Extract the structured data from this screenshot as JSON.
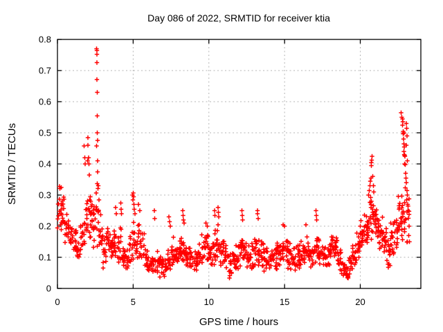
{
  "page": {
    "background_color": "#ffffff",
    "axis_color": "#000000"
  },
  "chart_data": {
    "type": "scatter",
    "title": "Day 086 of 2022, SRMTID for receiver ktia",
    "xlabel": "GPS time / hours",
    "ylabel": "SRMTID / TECUs",
    "xlim": [
      0,
      24
    ],
    "ylim": [
      0,
      0.8
    ],
    "xticks": [
      0,
      5,
      10,
      15,
      20
    ],
    "xtick_labels": [
      "0",
      "5",
      "10",
      "15",
      "20"
    ],
    "yticks": [
      0,
      0.1,
      0.2,
      0.3,
      0.4,
      0.5,
      0.6,
      0.7,
      0.8
    ],
    "ytick_labels": [
      "0",
      "0.1",
      "0.2",
      "0.3",
      "0.4",
      "0.5",
      "0.6",
      "0.7",
      "0.8"
    ],
    "grid": true,
    "grid_style": "dotted",
    "grid_color": "#b5b5b5",
    "marker": "plus",
    "marker_color": "#ff0000",
    "legend": null,
    "note": "Dense 30s-rate scatter; density_bins give [bin_start_hour, n_points, y_min, y_max] of the main band per 0.25 h bin; outlier_points are the distinct high excursions readable from the plot.",
    "bin_width_hours": 0.25,
    "density_bins": [
      [
        0.0,
        16,
        0.17,
        0.34
      ],
      [
        0.25,
        14,
        0.15,
        0.31
      ],
      [
        0.5,
        13,
        0.12,
        0.26
      ],
      [
        0.75,
        13,
        0.12,
        0.22
      ],
      [
        1.0,
        13,
        0.1,
        0.2
      ],
      [
        1.25,
        12,
        0.09,
        0.16
      ],
      [
        1.5,
        12,
        0.11,
        0.22
      ],
      [
        1.75,
        13,
        0.13,
        0.3
      ],
      [
        2.0,
        14,
        0.13,
        0.35
      ],
      [
        2.25,
        15,
        0.1,
        0.3
      ],
      [
        2.5,
        16,
        0.12,
        0.4
      ],
      [
        2.75,
        13,
        0.1,
        0.25
      ],
      [
        3.0,
        13,
        0.06,
        0.18
      ],
      [
        3.25,
        13,
        0.08,
        0.2
      ],
      [
        3.5,
        12,
        0.08,
        0.18
      ],
      [
        3.75,
        13,
        0.08,
        0.22
      ],
      [
        4.0,
        13,
        0.07,
        0.2
      ],
      [
        4.25,
        12,
        0.06,
        0.16
      ],
      [
        4.5,
        12,
        0.06,
        0.14
      ],
      [
        4.75,
        13,
        0.07,
        0.2
      ],
      [
        5.0,
        13,
        0.08,
        0.22
      ],
      [
        5.25,
        13,
        0.09,
        0.24
      ],
      [
        5.5,
        12,
        0.08,
        0.2
      ],
      [
        5.75,
        12,
        0.05,
        0.15
      ],
      [
        6.0,
        11,
        0.03,
        0.12
      ],
      [
        6.25,
        11,
        0.03,
        0.14
      ],
      [
        6.5,
        12,
        0.04,
        0.13
      ],
      [
        6.75,
        12,
        0.03,
        0.12
      ],
      [
        7.0,
        12,
        0.02,
        0.12
      ],
      [
        7.25,
        12,
        0.03,
        0.14
      ],
      [
        7.5,
        13,
        0.05,
        0.17
      ],
      [
        7.75,
        13,
        0.05,
        0.16
      ],
      [
        8.0,
        13,
        0.06,
        0.18
      ],
      [
        8.25,
        13,
        0.06,
        0.2
      ],
      [
        8.5,
        12,
        0.05,
        0.15
      ],
      [
        8.75,
        12,
        0.05,
        0.14
      ],
      [
        9.0,
        13,
        0.05,
        0.14
      ],
      [
        9.25,
        13,
        0.06,
        0.16
      ],
      [
        9.5,
        13,
        0.07,
        0.18
      ],
      [
        9.75,
        14,
        0.07,
        0.19
      ],
      [
        10.0,
        13,
        0.06,
        0.16
      ],
      [
        10.25,
        13,
        0.07,
        0.2
      ],
      [
        10.5,
        13,
        0.07,
        0.22
      ],
      [
        10.75,
        13,
        0.06,
        0.18
      ],
      [
        11.0,
        12,
        0.05,
        0.15
      ],
      [
        11.25,
        12,
        0.03,
        0.12
      ],
      [
        11.5,
        12,
        0.04,
        0.14
      ],
      [
        11.75,
        13,
        0.05,
        0.16
      ],
      [
        12.0,
        13,
        0.06,
        0.18
      ],
      [
        12.25,
        13,
        0.06,
        0.17
      ],
      [
        12.5,
        12,
        0.05,
        0.15
      ],
      [
        12.75,
        13,
        0.05,
        0.15
      ],
      [
        13.0,
        13,
        0.06,
        0.18
      ],
      [
        13.25,
        13,
        0.06,
        0.18
      ],
      [
        13.5,
        12,
        0.05,
        0.15
      ],
      [
        13.75,
        12,
        0.04,
        0.14
      ],
      [
        14.0,
        12,
        0.05,
        0.14
      ],
      [
        14.25,
        13,
        0.05,
        0.15
      ],
      [
        14.5,
        13,
        0.06,
        0.17
      ],
      [
        14.75,
        13,
        0.07,
        0.18
      ],
      [
        15.0,
        13,
        0.06,
        0.17
      ],
      [
        15.25,
        12,
        0.05,
        0.15
      ],
      [
        15.5,
        12,
        0.05,
        0.14
      ],
      [
        15.75,
        13,
        0.05,
        0.15
      ],
      [
        16.0,
        13,
        0.06,
        0.16
      ],
      [
        16.25,
        13,
        0.07,
        0.18
      ],
      [
        16.5,
        12,
        0.06,
        0.16
      ],
      [
        16.75,
        13,
        0.06,
        0.17
      ],
      [
        17.0,
        13,
        0.07,
        0.2
      ],
      [
        17.25,
        13,
        0.06,
        0.17
      ],
      [
        17.5,
        13,
        0.05,
        0.16
      ],
      [
        17.75,
        13,
        0.06,
        0.16
      ],
      [
        18.0,
        14,
        0.08,
        0.17
      ],
      [
        18.25,
        15,
        0.09,
        0.17
      ],
      [
        18.5,
        13,
        0.05,
        0.13
      ],
      [
        18.75,
        12,
        0.03,
        0.09
      ],
      [
        19.0,
        12,
        0.02,
        0.08
      ],
      [
        19.25,
        12,
        0.04,
        0.12
      ],
      [
        19.5,
        13,
        0.06,
        0.15
      ],
      [
        19.75,
        14,
        0.09,
        0.18
      ],
      [
        20.0,
        15,
        0.11,
        0.22
      ],
      [
        20.25,
        15,
        0.13,
        0.26
      ],
      [
        20.5,
        16,
        0.15,
        0.3
      ],
      [
        20.75,
        15,
        0.15,
        0.28
      ],
      [
        21.0,
        14,
        0.14,
        0.26
      ],
      [
        21.25,
        14,
        0.12,
        0.24
      ],
      [
        21.5,
        13,
        0.1,
        0.22
      ],
      [
        21.75,
        13,
        0.05,
        0.18
      ],
      [
        22.0,
        13,
        0.08,
        0.22
      ],
      [
        22.25,
        14,
        0.12,
        0.26
      ],
      [
        22.5,
        15,
        0.15,
        0.33
      ],
      [
        22.75,
        15,
        0.1,
        0.35
      ],
      [
        23.0,
        12,
        0.08,
        0.3
      ]
    ],
    "outlier_points": [
      [
        1.77,
        0.458
      ],
      [
        1.8,
        0.42
      ],
      [
        1.83,
        0.4
      ],
      [
        1.98,
        0.41
      ],
      [
        2.0,
        0.485
      ],
      [
        2.02,
        0.46
      ],
      [
        2.05,
        0.42
      ],
      [
        2.07,
        0.4
      ],
      [
        2.1,
        0.365
      ],
      [
        2.58,
        0.77
      ],
      [
        2.6,
        0.765
      ],
      [
        2.6,
        0.752
      ],
      [
        2.61,
        0.726
      ],
      [
        2.6,
        0.671
      ],
      [
        2.62,
        0.63
      ],
      [
        2.63,
        0.555
      ],
      [
        2.62,
        0.5
      ],
      [
        2.64,
        0.476
      ],
      [
        2.59,
        0.458
      ],
      [
        2.64,
        0.41
      ],
      [
        2.65,
        0.375
      ],
      [
        3.85,
        0.26
      ],
      [
        3.88,
        0.24
      ],
      [
        4.18,
        0.275
      ],
      [
        4.2,
        0.255
      ],
      [
        4.23,
        0.24
      ],
      [
        4.95,
        0.3
      ],
      [
        5.0,
        0.307
      ],
      [
        5.02,
        0.295
      ],
      [
        4.98,
        0.285
      ],
      [
        5.05,
        0.27
      ],
      [
        5.08,
        0.255
      ],
      [
        5.12,
        0.24
      ],
      [
        5.35,
        0.27
      ],
      [
        5.45,
        0.25
      ],
      [
        6.4,
        0.25
      ],
      [
        6.42,
        0.225
      ],
      [
        7.35,
        0.23
      ],
      [
        7.4,
        0.215
      ],
      [
        7.45,
        0.2
      ],
      [
        8.28,
        0.25
      ],
      [
        8.3,
        0.235
      ],
      [
        8.33,
        0.22
      ],
      [
        8.36,
        0.21
      ],
      [
        9.8,
        0.21
      ],
      [
        9.9,
        0.2
      ],
      [
        10.38,
        0.25
      ],
      [
        10.4,
        0.235
      ],
      [
        10.6,
        0.26
      ],
      [
        10.62,
        0.245
      ],
      [
        10.65,
        0.23
      ],
      [
        12.18,
        0.25
      ],
      [
        12.2,
        0.235
      ],
      [
        12.23,
        0.22
      ],
      [
        13.2,
        0.25
      ],
      [
        13.22,
        0.24
      ],
      [
        13.25,
        0.225
      ],
      [
        14.9,
        0.205
      ],
      [
        15.0,
        0.2
      ],
      [
        16.4,
        0.205
      ],
      [
        17.08,
        0.25
      ],
      [
        17.1,
        0.235
      ],
      [
        17.13,
        0.22
      ],
      [
        20.55,
        0.3
      ],
      [
        20.6,
        0.315
      ],
      [
        20.63,
        0.33
      ],
      [
        20.66,
        0.345
      ],
      [
        20.7,
        0.355
      ],
      [
        20.72,
        0.395
      ],
      [
        20.74,
        0.405
      ],
      [
        20.76,
        0.412
      ],
      [
        20.78,
        0.425
      ],
      [
        20.82,
        0.36
      ],
      [
        20.86,
        0.33
      ],
      [
        20.9,
        0.31
      ],
      [
        22.7,
        0.565
      ],
      [
        22.75,
        0.55
      ],
      [
        22.78,
        0.545
      ],
      [
        22.8,
        0.535
      ],
      [
        22.79,
        0.525
      ],
      [
        22.84,
        0.505
      ],
      [
        22.87,
        0.5
      ],
      [
        22.83,
        0.497
      ],
      [
        22.86,
        0.48
      ],
      [
        22.89,
        0.465
      ],
      [
        22.91,
        0.455
      ],
      [
        22.88,
        0.44
      ],
      [
        22.9,
        0.43
      ],
      [
        22.92,
        0.428
      ],
      [
        22.94,
        0.425
      ],
      [
        22.93,
        0.4
      ],
      [
        22.96,
        0.398
      ],
      [
        23.05,
        0.53
      ],
      [
        23.06,
        0.515
      ],
      [
        23.08,
        0.49
      ],
      [
        23.05,
        0.46
      ],
      [
        23.1,
        0.41
      ],
      [
        23.0,
        0.37
      ],
      [
        23.02,
        0.355
      ],
      [
        23.05,
        0.34
      ],
      [
        23.08,
        0.315
      ],
      [
        23.1,
        0.3
      ],
      [
        23.12,
        0.27
      ],
      [
        23.15,
        0.25
      ]
    ]
  }
}
